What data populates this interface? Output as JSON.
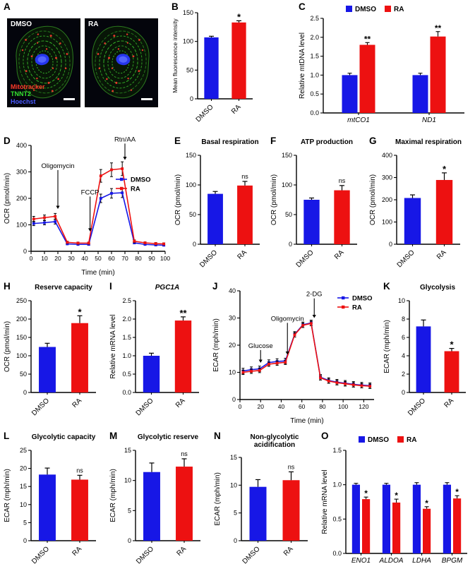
{
  "figure_bg": "#ffffff",
  "colors": {
    "dmso_blue": "#1717E6",
    "ra_red": "#ED1111"
  },
  "panel_letters": [
    "A",
    "B",
    "C",
    "D",
    "E",
    "F",
    "G",
    "H",
    "I",
    "J",
    "K",
    "L",
    "M",
    "N",
    "O"
  ],
  "panelA": {
    "images": [
      {
        "label": "DMSO"
      },
      {
        "label": "RA"
      }
    ],
    "stain_legend": [
      {
        "text": "Mitotracker",
        "color": "#FF3B2A"
      },
      {
        "text": "TNNT2",
        "color": "#35E22F"
      },
      {
        "text": "Hoechst",
        "color": "#4A5AFF"
      }
    ]
  },
  "chart_data": [
    {
      "panel": "B",
      "type": "bar",
      "title": "",
      "ylabel": "Mean fluorescence intensity",
      "ylim": [
        0,
        150
      ],
      "yticks": [
        0,
        50,
        100,
        150
      ],
      "categories": [
        "DMSO",
        "RA"
      ],
      "values": [
        107,
        133
      ],
      "errors": [
        2,
        3
      ],
      "colors": [
        "#1717E6",
        "#ED1111"
      ],
      "sig": [
        {
          "text": "*",
          "cat": 1
        }
      ]
    },
    {
      "panel": "C",
      "type": "grouped-bar",
      "ylabel": "Relative mtDNA level",
      "ylim": [
        0,
        2.5
      ],
      "yticks": [
        0,
        0.5,
        1,
        1.5,
        2,
        2.5
      ],
      "ytick_format": "1dp",
      "categories": [
        "mtCO1",
        "ND1"
      ],
      "series": [
        {
          "name": "DMSO",
          "color": "#1717E6",
          "values": [
            1.0,
            1.0
          ],
          "errors": [
            0.05,
            0.05
          ]
        },
        {
          "name": "RA",
          "color": "#ED1111",
          "values": [
            1.8,
            2.02
          ],
          "errors": [
            0.06,
            0.13
          ]
        }
      ],
      "legend_position": "top",
      "sig": [
        {
          "text": "**",
          "series": 1,
          "cat": 0
        },
        {
          "text": "**",
          "series": 1,
          "cat": 1
        }
      ]
    },
    {
      "panel": "D",
      "type": "line",
      "xlabel": "Time (min)",
      "ylabel": "OCR (pmol/min)",
      "xlim": [
        0,
        100
      ],
      "xticks": [
        0,
        10,
        20,
        30,
        40,
        50,
        60,
        70,
        80,
        90,
        100
      ],
      "ylim": [
        0,
        400
      ],
      "yticks": [
        0,
        100,
        200,
        300,
        400
      ],
      "x": [
        2,
        10,
        18,
        27,
        35,
        43,
        52,
        60,
        68,
        77,
        85,
        93,
        99
      ],
      "series": [
        {
          "name": "DMSO",
          "color": "#1717E6",
          "values": [
            105,
            108,
            112,
            28,
            26,
            26,
            200,
            219,
            221,
            32,
            26,
            24,
            23
          ],
          "errors": [
            8,
            8,
            9,
            3,
            3,
            3,
            16,
            18,
            18,
            4,
            3,
            3,
            3
          ]
        },
        {
          "name": "RA",
          "color": "#ED1111",
          "values": [
            122,
            127,
            132,
            34,
            31,
            31,
            285,
            308,
            312,
            38,
            32,
            29,
            28
          ],
          "errors": [
            10,
            10,
            11,
            4,
            4,
            4,
            24,
            26,
            26,
            5,
            4,
            4,
            4
          ]
        }
      ],
      "annotations": [
        {
          "text": "Oligomycin",
          "x": 20,
          "ytext": 315,
          "yarrow": 160
        },
        {
          "text": "FCCP",
          "x": 44,
          "ytext": 215,
          "yarrow": 75
        },
        {
          "text": "Rtn/AA",
          "x": 70,
          "ytext": 415,
          "yarrow": 345
        }
      ],
      "legend_position": "inside-right"
    },
    {
      "panel": "E",
      "type": "bar",
      "title": "Basal respiration",
      "ylabel": "OCR (pmol/min)",
      "ylim": [
        0,
        150
      ],
      "yticks": [
        0,
        50,
        100,
        150
      ],
      "categories": [
        "DMSO",
        "RA"
      ],
      "values": [
        85,
        99
      ],
      "errors": [
        4,
        7
      ],
      "colors": [
        "#1717E6",
        "#ED1111"
      ],
      "sig": [
        {
          "text": "ns",
          "cat": 1
        }
      ]
    },
    {
      "panel": "F",
      "type": "bar",
      "title": "ATP production",
      "ylabel": "OCR (pmol/min)",
      "ylim": [
        0,
        150
      ],
      "yticks": [
        0,
        50,
        100,
        150
      ],
      "categories": [
        "DMSO",
        "RA"
      ],
      "values": [
        75,
        91
      ],
      "errors": [
        3,
        8
      ],
      "colors": [
        "#1717E6",
        "#ED1111"
      ],
      "sig": [
        {
          "text": "ns",
          "cat": 1
        }
      ]
    },
    {
      "panel": "G",
      "type": "bar",
      "title": "Maximal respiration",
      "ylabel": "OCR (pmol/min)",
      "ylim": [
        0,
        400
      ],
      "yticks": [
        0,
        100,
        200,
        300,
        400
      ],
      "categories": [
        "DMSO",
        "RA"
      ],
      "values": [
        208,
        289
      ],
      "errors": [
        14,
        32
      ],
      "colors": [
        "#1717E6",
        "#ED1111"
      ],
      "sig": [
        {
          "text": "*",
          "cat": 1
        }
      ]
    },
    {
      "panel": "H",
      "type": "bar",
      "title": "Reserve capacity",
      "ylabel": "OCR (pmol/min)",
      "ylim": [
        0,
        250
      ],
      "yticks": [
        0,
        50,
        100,
        150,
        200,
        250
      ],
      "categories": [
        "DMSO",
        "RA"
      ],
      "values": [
        124,
        189
      ],
      "errors": [
        10,
        20
      ],
      "colors": [
        "#1717E6",
        "#ED1111"
      ],
      "sig": [
        {
          "text": "*",
          "cat": 1
        }
      ]
    },
    {
      "panel": "I",
      "type": "bar",
      "title": "PGC1A",
      "title_italic": true,
      "ylabel": "Relative mRNA level",
      "ylim": [
        0,
        2.5
      ],
      "yticks": [
        0,
        0.5,
        1,
        1.5,
        2,
        2.5
      ],
      "ytick_format": "1dp",
      "categories": [
        "DMSO",
        "RA"
      ],
      "values": [
        1.0,
        1.96
      ],
      "errors": [
        0.07,
        0.1
      ],
      "colors": [
        "#1717E6",
        "#ED1111"
      ],
      "sig": [
        {
          "text": "**",
          "cat": 1
        }
      ]
    },
    {
      "panel": "J",
      "type": "line",
      "xlabel": "Time (min)",
      "ylabel": "ECAR (mph/min)",
      "xlim": [
        0,
        130
      ],
      "xticks": [
        0,
        20,
        40,
        60,
        80,
        100,
        120
      ],
      "ylim": [
        0,
        40
      ],
      "yticks": [
        0,
        10,
        20,
        30,
        40
      ],
      "x": [
        3,
        11,
        19,
        28,
        36,
        44,
        53,
        61,
        69,
        78,
        86,
        94,
        102,
        110,
        118,
        126
      ],
      "series": [
        {
          "name": "DMSO",
          "color": "#1717E6",
          "values": [
            10.5,
            11,
            11.3,
            13.6,
            14,
            14.2,
            24,
            27.5,
            28.2,
            8.2,
            7,
            6.4,
            6,
            5.6,
            5.3,
            5.1
          ],
          "errors": 1
        },
        {
          "name": "RA",
          "color": "#ED1111",
          "values": [
            10,
            10.4,
            10.7,
            13,
            13.4,
            13.7,
            23.8,
            27.3,
            28,
            8,
            6.8,
            6.2,
            5.8,
            5.4,
            5.1,
            4.9
          ],
          "errors": 0.8
        }
      ],
      "annotations": [
        {
          "text": "Glucose",
          "x": 20,
          "ytext": 19,
          "yarrow": 13.5
        },
        {
          "text": "Oligomycin",
          "x": 46,
          "ytext": 29,
          "yarrow": 16.5
        },
        {
          "text": "2-DG",
          "x": 72,
          "ytext": 38,
          "yarrow": 30
        }
      ],
      "legend_position": "top-right"
    },
    {
      "panel": "K",
      "type": "bar",
      "title": "Glycolysis",
      "ylabel": "ECAR (mph/min)",
      "ylim": [
        0,
        10
      ],
      "yticks": [
        0,
        2,
        4,
        6,
        8,
        10
      ],
      "categories": [
        "DMSO",
        "RA"
      ],
      "values": [
        7.2,
        4.5
      ],
      "errors": [
        0.7,
        0.3
      ],
      "colors": [
        "#1717E6",
        "#ED1111"
      ],
      "sig": [
        {
          "text": "*",
          "cat": 1
        }
      ]
    },
    {
      "panel": "L",
      "type": "bar",
      "title": "Glycolytic capacity",
      "ylabel": "ECAR (mph/min)",
      "ylim": [
        0,
        25
      ],
      "yticks": [
        0,
        5,
        10,
        15,
        20,
        25
      ],
      "categories": [
        "DMSO",
        "RA"
      ],
      "values": [
        18.3,
        16.9
      ],
      "errors": [
        1.8,
        1.2
      ],
      "colors": [
        "#1717E6",
        "#ED1111"
      ],
      "sig": [
        {
          "text": "ns",
          "cat": 1
        }
      ]
    },
    {
      "panel": "M",
      "type": "bar",
      "title": "Glycolytic reserve",
      "ylabel": "ECAR (mph/min)",
      "ylim": [
        0,
        15
      ],
      "yticks": [
        0,
        5,
        10,
        15
      ],
      "categories": [
        "DMSO",
        "RA"
      ],
      "values": [
        11.4,
        12.3
      ],
      "errors": [
        1.5,
        1.3
      ],
      "colors": [
        "#1717E6",
        "#ED1111"
      ],
      "sig": [
        {
          "text": "ns",
          "cat": 1
        }
      ]
    },
    {
      "panel": "N",
      "type": "bar",
      "title": "Non-glycolytic acidification",
      "ylabel": "ECAR (mph/min)",
      "ylim": [
        0,
        15
      ],
      "yticks": [
        0,
        5,
        10,
        15
      ],
      "categories": [
        "DMSO",
        "RA"
      ],
      "values": [
        9.7,
        10.9
      ],
      "errors": [
        1.3,
        1.5
      ],
      "colors": [
        "#1717E6",
        "#ED1111"
      ],
      "sig": [
        {
          "text": "ns",
          "cat": 1
        }
      ]
    },
    {
      "panel": "O",
      "type": "grouped-bar",
      "ylabel": "Relative mRNA level",
      "ylim": [
        0,
        1.5
      ],
      "yticks": [
        0,
        0.5,
        1,
        1.5
      ],
      "ytick_format": "1dp",
      "categories": [
        "ENO1",
        "ALDOA",
        "LDHA",
        "BPGM"
      ],
      "series": [
        {
          "name": "DMSO",
          "color": "#1717E6",
          "values": [
            1.0,
            1.0,
            1.0,
            1.0
          ],
          "errors": [
            0.02,
            0.02,
            0.03,
            0.03
          ]
        },
        {
          "name": "RA",
          "color": "#ED1111",
          "values": [
            0.79,
            0.74,
            0.65,
            0.8
          ],
          "errors": [
            0.03,
            0.05,
            0.03,
            0.04
          ]
        }
      ],
      "legend_position": "top",
      "sig": [
        {
          "text": "*",
          "series": 1,
          "cat": 0
        },
        {
          "text": "*",
          "series": 1,
          "cat": 1
        },
        {
          "text": "*",
          "series": 1,
          "cat": 2
        },
        {
          "text": "*",
          "series": 1,
          "cat": 3
        }
      ]
    }
  ]
}
